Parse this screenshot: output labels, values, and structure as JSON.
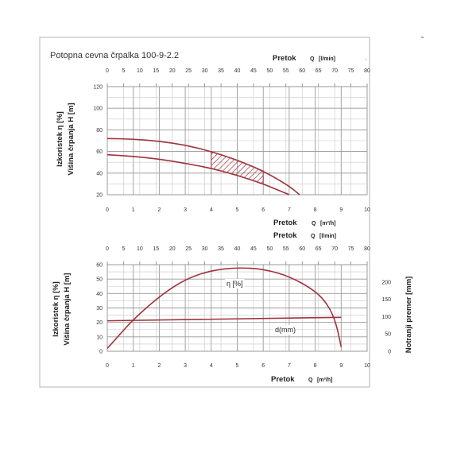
{
  "title": "Potopna cevna črpalka 100-9-2.2",
  "colors": {
    "curve": "#a0323c",
    "grid": "#9a9a9a",
    "frame": "#b5b5b5"
  },
  "chart_data": [
    {
      "type": "line",
      "top_axis": {
        "label": "Pretok",
        "unit_prefix": "Q",
        "unit": "[l/min]",
        "range": [
          0,
          80
        ],
        "ticks": [
          "0",
          "5",
          "10",
          "15",
          "20",
          "25",
          "30",
          "35",
          "40",
          "45",
          "50",
          "55",
          "60",
          "65",
          "70",
          "75",
          "80"
        ]
      },
      "bottom_axis": {
        "label": "Pretok",
        "unit_prefix": "Q",
        "unit": "[m³/h]",
        "range": [
          0,
          10
        ],
        "ticks": [
          "0",
          "1",
          "2",
          "3",
          "4",
          "5",
          "6",
          "7",
          "8",
          "9",
          "10"
        ]
      },
      "left_axis": {
        "label_outer": "Izkoristek η [%]",
        "label_inner": "Višina črpanja H [m]",
        "range": [
          20,
          120
        ],
        "ticks": [
          "20",
          "40",
          "60",
          "80",
          "100",
          "120"
        ]
      },
      "grid": true,
      "series": [
        {
          "x": [
            0,
            1,
            2,
            3,
            4,
            5,
            6,
            7,
            7.4
          ],
          "y": [
            72,
            71.5,
            69.5,
            66,
            60,
            52,
            42,
            28,
            20
          ]
        },
        {
          "x": [
            0,
            1,
            2,
            3,
            4,
            5,
            6,
            6.6,
            7
          ],
          "y": [
            57,
            55.5,
            53,
            49,
            44.5,
            38,
            30,
            24,
            20
          ]
        }
      ],
      "highlight_band": {
        "x_from": 4,
        "x_to": 6,
        "style": "hatched"
      }
    },
    {
      "type": "line",
      "top_axis": {
        "label": "Pretok",
        "unit_prefix": "Q",
        "unit": "[l/min]",
        "range": [
          0,
          80
        ],
        "ticks": [
          "0",
          "5",
          "10",
          "15",
          "20",
          "25",
          "30",
          "35",
          "40",
          "45",
          "50",
          "55",
          "60",
          "65",
          "70",
          "75",
          "80"
        ]
      },
      "bottom_axis": {
        "label": "Pretok",
        "unit_prefix": "Q",
        "unit": "[m³/h]",
        "range": [
          0,
          10
        ],
        "ticks": [
          "0",
          "1",
          "2",
          "3",
          "4",
          "5",
          "6",
          "7",
          "8",
          "9",
          "10"
        ]
      },
      "left_axis": {
        "label_outer": "Izkoristek η [%]",
        "label_inner": "Višina črpanja H [m]",
        "range": [
          0,
          60
        ],
        "ticks": [
          "0",
          "10",
          "20",
          "30",
          "40",
          "50",
          "60"
        ]
      },
      "right_axis": {
        "label": "Notranji premer [mm]",
        "range": [
          0,
          250
        ],
        "ticks": [
          "0",
          "50",
          "100",
          "150",
          "200"
        ]
      },
      "grid": true,
      "series": [
        {
          "name": "η [%]",
          "axis": "left",
          "x": [
            0,
            0.5,
            1,
            2,
            3,
            4,
            5,
            6,
            7,
            8,
            8.5,
            8.8,
            9
          ],
          "y": [
            2,
            12,
            22,
            38,
            50,
            56,
            58,
            57,
            52,
            42,
            32,
            20,
            3
          ]
        },
        {
          "name": "d(mm)",
          "axis": "right",
          "x": [
            0,
            9
          ],
          "y": [
            88,
            98
          ]
        }
      ],
      "annotations": [
        "η [%]",
        "d(mm)"
      ]
    }
  ]
}
